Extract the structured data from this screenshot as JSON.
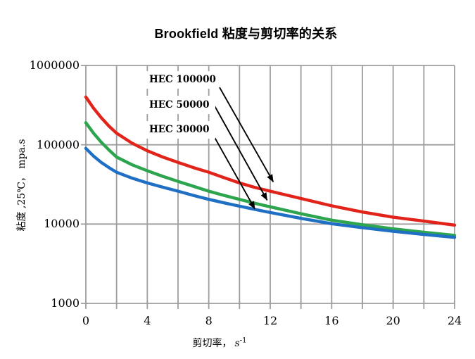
{
  "title": "Brookfield 粘度与剪切率的关系",
  "axes": {
    "y_ticks": [
      "1000000",
      "100000",
      "10000",
      "1000"
    ],
    "x_ticks": [
      "0",
      "4",
      "8",
      "12",
      "16",
      "20",
      "24"
    ],
    "y_title": "粘度 ,25℃， mpa.s",
    "x_title_prefix": "剪切率，",
    "x_title_var": "s",
    "x_title_sup": "-1"
  },
  "chart_data": {
    "type": "line",
    "title": "Brookfield 粘度与剪切率的关系",
    "xlabel": "剪切率, s^-1",
    "ylabel": "粘度 ,25℃, mpa.s",
    "x_axis": {
      "min": 0,
      "max": 24,
      "gridline_step": 2,
      "tick_label_step": 4
    },
    "y_axis": {
      "scale": "log",
      "min": 1000,
      "max": 1000000,
      "gridlines": [
        1000,
        10000,
        100000,
        1000000
      ]
    },
    "grid": true,
    "legend_position": "inline-labels-with-arrows",
    "colors": {
      "grid": "#9e9e9e",
      "annotation": "#000000",
      "background": "#ffffff"
    },
    "series": [
      {
        "name": "HEC 100000",
        "color": "#e2231a",
        "points": [
          [
            0,
            400000
          ],
          [
            0.5,
            290000
          ],
          [
            1,
            220000
          ],
          [
            1.5,
            172000
          ],
          [
            2,
            140000
          ],
          [
            3,
            105000
          ],
          [
            4,
            84000
          ],
          [
            5,
            70000
          ],
          [
            6,
            60000
          ],
          [
            7,
            51500
          ],
          [
            8,
            45000
          ],
          [
            9,
            38500
          ],
          [
            10,
            33000
          ],
          [
            11,
            29000
          ],
          [
            12,
            26000
          ],
          [
            14,
            21000
          ],
          [
            16,
            17000
          ],
          [
            18,
            14200
          ],
          [
            20,
            12200
          ],
          [
            22,
            10900
          ],
          [
            24,
            9700
          ]
        ]
      },
      {
        "name": "HEC 50000",
        "color": "#2da44e",
        "points": [
          [
            0,
            190000
          ],
          [
            0.5,
            140000
          ],
          [
            1,
            108000
          ],
          [
            1.5,
            86000
          ],
          [
            2,
            70000
          ],
          [
            3,
            56000
          ],
          [
            4,
            47000
          ],
          [
            5,
            40000
          ],
          [
            6,
            34500
          ],
          [
            7,
            30000
          ],
          [
            8,
            26000
          ],
          [
            9,
            23000
          ],
          [
            10,
            20500
          ],
          [
            11,
            18300
          ],
          [
            12,
            16500
          ],
          [
            14,
            13500
          ],
          [
            16,
            11200
          ],
          [
            18,
            9800
          ],
          [
            20,
            8700
          ],
          [
            22,
            7900
          ],
          [
            24,
            7200
          ]
        ]
      },
      {
        "name": "HEC 30000",
        "color": "#1f6fc5",
        "points": [
          [
            0,
            90000
          ],
          [
            0.5,
            72000
          ],
          [
            1,
            60000
          ],
          [
            1.5,
            51500
          ],
          [
            2,
            45000
          ],
          [
            3,
            38000
          ],
          [
            4,
            33000
          ],
          [
            5,
            29200
          ],
          [
            6,
            26000
          ],
          [
            7,
            23000
          ],
          [
            8,
            20500
          ],
          [
            9,
            18500
          ],
          [
            10,
            16800
          ],
          [
            11,
            15300
          ],
          [
            12,
            14000
          ],
          [
            14,
            11800
          ],
          [
            16,
            10100
          ],
          [
            18,
            9000
          ],
          [
            20,
            8100
          ],
          [
            22,
            7400
          ],
          [
            24,
            6800
          ]
        ]
      }
    ],
    "annotation_arrows": [
      {
        "series": "HEC 100000",
        "from_x": 8.7,
        "from_v": 530000,
        "to_x": 12.2,
        "to_v": 34000
      },
      {
        "series": "HEC 50000",
        "from_x": 8.3,
        "from_v": 330000,
        "to_x": 11.8,
        "to_v": 20000
      },
      {
        "series": "HEC 30000",
        "from_x": 8.2,
        "from_v": 143000,
        "to_x": 11.0,
        "to_v": 15500
      }
    ]
  }
}
